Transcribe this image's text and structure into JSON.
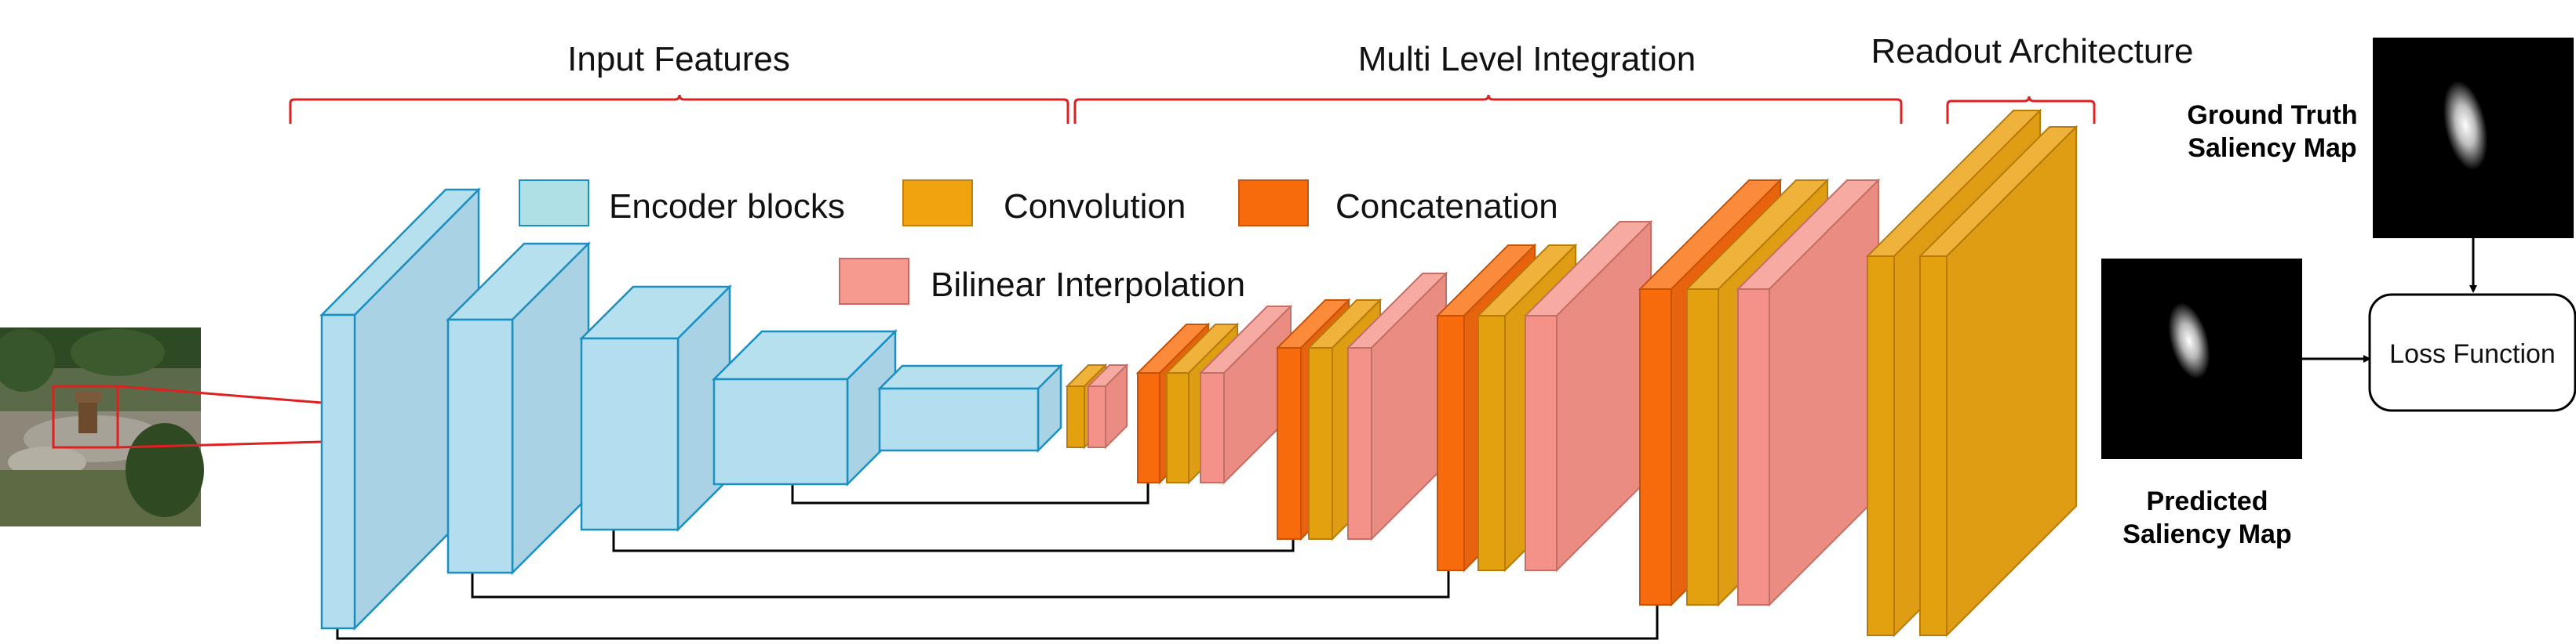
{
  "headers": {
    "input_features": "Input Features",
    "multi_level": "Multi Level Integration",
    "readout": "Readout Architecture"
  },
  "legend": {
    "encoder": "Encoder blocks",
    "convolution": "Convolution",
    "concatenation": "Concatenation",
    "bilinear": "Bilinear Interpolation"
  },
  "maps": {
    "ground_truth_line1": "Ground Truth",
    "ground_truth_line2": "Saliency Map",
    "predicted_line1": "Predicted",
    "predicted_line2": "Saliency Map"
  },
  "loss_function": "Loss Function",
  "colors": {
    "encoder_fill": "#a9d3e4",
    "encoder_top": "#b6e0ee",
    "encoder_front": "#b3def0",
    "encoder_stroke": "#1a8fc0",
    "convolution": "#e3a00f",
    "concatenation": "#f76b0c",
    "bilinear": "#f49289",
    "bracket": "#e02020",
    "line": "#000000"
  }
}
